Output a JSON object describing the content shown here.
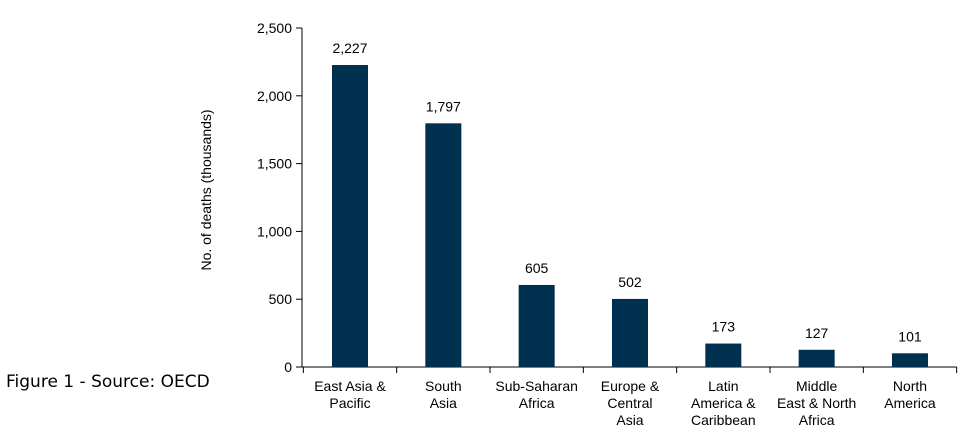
{
  "caption": "Figure 1 - Source: OECD",
  "colors": {
    "bar": "#003050",
    "axis": "#000000"
  },
  "chart_data": {
    "type": "bar",
    "title": "",
    "xlabel": "",
    "ylabel": "No. of deaths (thousands)",
    "ylim": [
      0,
      2500
    ],
    "yticks": [
      0,
      500,
      1000,
      1500,
      2000,
      2500
    ],
    "ytick_labels": [
      "0",
      "500",
      "1,000",
      "1,500",
      "2,000",
      "2,500"
    ],
    "grid": false,
    "categories": [
      [
        "East Asia &",
        "Pacific"
      ],
      [
        "South",
        "Asia"
      ],
      [
        "Sub-Saharan",
        "Africa"
      ],
      [
        "Europe &",
        "Central",
        "Asia"
      ],
      [
        "Latin",
        "America &",
        "Caribbean"
      ],
      [
        "Middle",
        "East & North",
        "Africa"
      ],
      [
        "North",
        "America"
      ]
    ],
    "values": [
      2227,
      1797,
      605,
      502,
      173,
      127,
      101
    ],
    "value_labels": [
      "2,227",
      "1,797",
      "605",
      "502",
      "173",
      "127",
      "101"
    ]
  }
}
